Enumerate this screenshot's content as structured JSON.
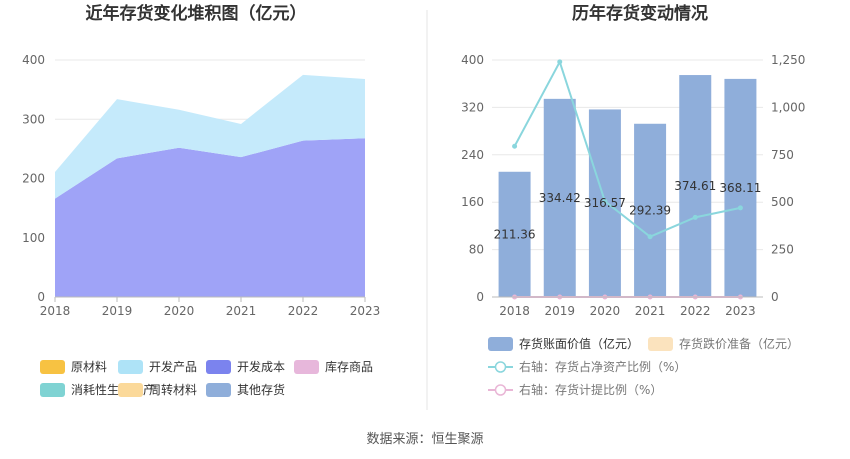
{
  "source": "数据来源：恒生聚源",
  "chart_data": [
    {
      "type": "area",
      "title": "近年存货变化堆积图（亿元）",
      "x": [
        "2018",
        "2019",
        "2020",
        "2021",
        "2022",
        "2023"
      ],
      "ylim": [
        0,
        400
      ],
      "yticks": [
        "0",
        "100",
        "200",
        "300",
        "400"
      ],
      "grid": true,
      "legend_placement": "bottom",
      "legend": [
        {
          "name": "原材料",
          "color": "#F7C242"
        },
        {
          "name": "开发产品",
          "color": "#AEE3F7"
        },
        {
          "name": "开发成本",
          "color": "#7B83EE"
        },
        {
          "name": "库存商品",
          "color": "#E7B7DB"
        },
        {
          "name": "消耗性生物资产",
          "color": "#7FD3D3"
        },
        {
          "name": "周转材料",
          "color": "#FBD99A"
        },
        {
          "name": "其他存货",
          "color": "#8FAEDA"
        }
      ],
      "series": [
        {
          "name": "开发成本",
          "color": "#9FA3F7",
          "values": [
            166,
            234,
            252,
            236,
            264,
            268
          ]
        },
        {
          "name": "开发产品",
          "color": "#C5EAFB",
          "values": [
            45,
            100,
            64,
            56,
            111,
            100
          ]
        }
      ]
    },
    {
      "type": "bar",
      "title": "历年存货变动情况",
      "x": [
        "2018",
        "2019",
        "2020",
        "2021",
        "2022",
        "2023"
      ],
      "ylim": [
        0,
        400
      ],
      "yticks": [
        "0",
        "80",
        "160",
        "240",
        "320",
        "400"
      ],
      "y2lim": [
        0,
        1250
      ],
      "y2ticks": [
        "0",
        "250",
        "500",
        "750",
        "1,000",
        "1,250"
      ],
      "legend_placement": "bottom",
      "bars": {
        "name": "存货账面价值（亿元）",
        "color": "#8FAEDA",
        "values": [
          211.36,
          334.42,
          316.57,
          292.39,
          374.61,
          368.11
        ],
        "labels": [
          "211.36",
          "334.42",
          "316.57",
          "292.39",
          "374.61",
          "368.11"
        ]
      },
      "bars2": {
        "name": "存货跌价准备（亿元）",
        "color": "#FBE3BE",
        "values": [
          0,
          0,
          0,
          0,
          0,
          0
        ]
      },
      "line1": {
        "name": "右轴：存货占净资产比例（%）",
        "color": "#8AD6DD",
        "values": [
          795,
          1240,
          505,
          318,
          420,
          470
        ]
      },
      "line2": {
        "name": "右轴：存货计提比例（%）",
        "color": "#E9B6D6",
        "values": [
          0,
          0,
          0,
          0,
          0,
          0
        ]
      }
    }
  ]
}
